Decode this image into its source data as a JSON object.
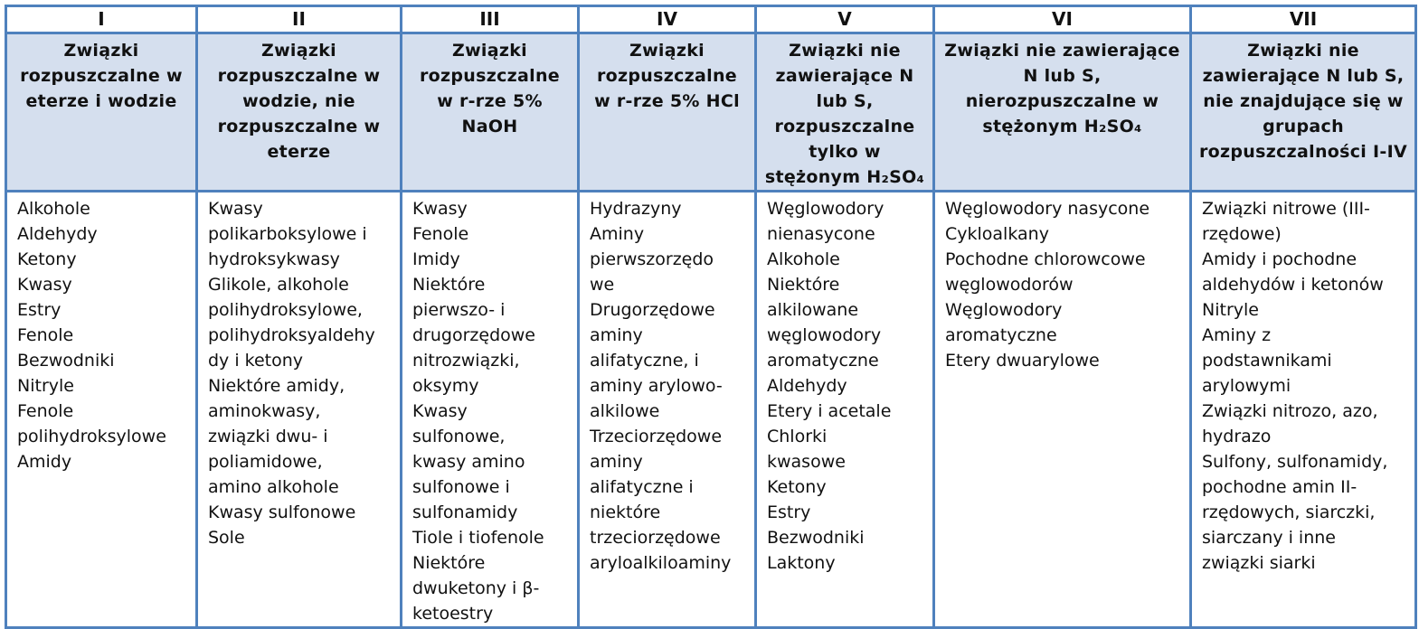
{
  "columns": [
    {
      "number": "I",
      "heading": [
        "Związki",
        "rozpuszczalne w",
        "eterze i wodzie"
      ],
      "items": [
        "Alkohole",
        "Aldehydy",
        "Ketony",
        "Kwasy",
        "Estry",
        "Fenole",
        "Bezwodniki",
        "Nitryle",
        "Fenole",
        "polihydroksylowe",
        "Amidy"
      ]
    },
    {
      "number": "II",
      "heading": [
        "Związki",
        "rozpuszczalne w",
        "wodzie, nie",
        "rozpuszczalne w",
        "eterze"
      ],
      "items": [
        "Kwasy",
        "polikarboksylowe i",
        "hydroksykwasy",
        "Glikole, alkohole",
        "polihydroksylowe,",
        "polihydroksyaldehy",
        "dy i ketony",
        "Niektóre amidy,",
        "aminokwasy,",
        "związki dwu- i",
        "poliamidowe,",
        "amino alkohole",
        "Kwasy sulfonowe",
        "Sole"
      ]
    },
    {
      "number": "III",
      "heading": [
        "Związki",
        "rozpuszczalne",
        "w r-rze 5%",
        "NaOH"
      ],
      "items": [
        "Kwasy",
        "Fenole",
        "Imidy",
        "Niektóre",
        "pierwszo- i",
        "drugorzędowe",
        "nitrozwiązki,",
        "oksymy",
        "Kwasy",
        "sulfonowe,",
        "kwasy amino",
        "sulfonowe i",
        "sulfonamidy",
        "Tiole i tiofenole",
        "Niektóre",
        "dwuketony i β-",
        "ketoestry"
      ]
    },
    {
      "number": "IV",
      "heading": [
        "Związki",
        "rozpuszczalne",
        "w r-rze 5% HCl"
      ],
      "items": [
        "Hydrazyny",
        "Aminy",
        "pierwszorzędo",
        "we",
        "Drugorzędowe",
        "aminy",
        "alifatyczne, i",
        "aminy arylowo-",
        "alkilowe",
        "Trzeciorzędowe",
        "aminy",
        "alifatyczne i",
        "niektóre",
        "trzeciorzędowe",
        "aryloalkiloaminy"
      ]
    },
    {
      "number": "V",
      "heading": [
        "Związki nie",
        "zawierające N",
        "lub S,",
        "rozpuszczalne",
        "tylko w",
        "stężonym H₂SO₄"
      ],
      "items": [
        "Węglowodory",
        "nienasycone",
        "Alkohole",
        "Niektóre",
        "alkilowane",
        "węglowodory",
        "aromatyczne",
        "Aldehydy",
        "Etery i acetale",
        "Chlorki",
        "kwasowe",
        "Ketony",
        "Estry",
        "Bezwodniki",
        "Laktony"
      ]
    },
    {
      "number": "VI",
      "heading": [
        "Związki nie zawierające",
        "N lub S,",
        "nierozpuszczalne w",
        "stężonym H₂SO₄"
      ],
      "items": [
        "Węglowodory nasycone",
        "Cykloalkany",
        "Pochodne chlorowcowe",
        "węglowodorów",
        "Węglowodory",
        "aromatyczne",
        "Etery dwuarylowe"
      ]
    },
    {
      "number": "VII",
      "heading": [
        "Związki nie",
        "zawierające N lub S,",
        "nie znajdujące się w",
        "grupach",
        "rozpuszczalności I-IV"
      ],
      "items": [
        "Związki nitrowe (III-",
        "rzędowe)",
        "Amidy i pochodne",
        "aldehydów i ketonów",
        "Nitryle",
        "Aminy z",
        "podstawnikami",
        "arylowymi",
        "Związki nitrozo, azo,",
        "hydrazo",
        "Sulfony, sulfonamidy,",
        "pochodne amin II-",
        "rzędowych, siarczki,",
        "siarczany i inne",
        "związki siarki"
      ]
    }
  ],
  "colors": {
    "border": "#4f81bd",
    "header_fill": "#d5dfee"
  }
}
